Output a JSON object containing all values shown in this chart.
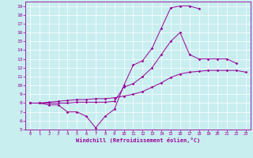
{
  "xlabel": "Windchill (Refroidissement éolien,°C)",
  "xlim": [
    -0.5,
    23.5
  ],
  "ylim": [
    5,
    19.5
  ],
  "xticks": [
    0,
    1,
    2,
    3,
    4,
    5,
    6,
    7,
    8,
    9,
    10,
    11,
    12,
    13,
    14,
    15,
    16,
    17,
    18,
    19,
    20,
    21,
    22,
    23
  ],
  "yticks": [
    5,
    6,
    7,
    8,
    9,
    10,
    11,
    12,
    13,
    14,
    15,
    16,
    17,
    18,
    19
  ],
  "bg_color": "#c8eef0",
  "line_color": "#990099",
  "line1_y": [
    8.0,
    8.0,
    8.1,
    8.2,
    8.3,
    8.4,
    8.4,
    8.5,
    8.5,
    8.6,
    8.8,
    9.0,
    9.3,
    9.8,
    10.3,
    10.9,
    11.3,
    11.5,
    11.6,
    11.7,
    11.7,
    11.7,
    11.7,
    11.5
  ],
  "line2_y": [
    8.0,
    8.0,
    7.8,
    7.8,
    7.0,
    7.0,
    6.5,
    5.2,
    6.5,
    7.3,
    10.0,
    12.3,
    12.8,
    14.2,
    16.5,
    18.8,
    19.0,
    19.0,
    18.7,
    null,
    null,
    null,
    null,
    null
  ],
  "line3_y": [
    8.0,
    8.0,
    8.0,
    8.0,
    8.0,
    8.1,
    8.1,
    8.1,
    8.1,
    8.2,
    9.8,
    10.2,
    11.0,
    12.0,
    13.5,
    15.0,
    16.0,
    13.5,
    13.0,
    13.0,
    13.0,
    13.0,
    12.5,
    null
  ]
}
